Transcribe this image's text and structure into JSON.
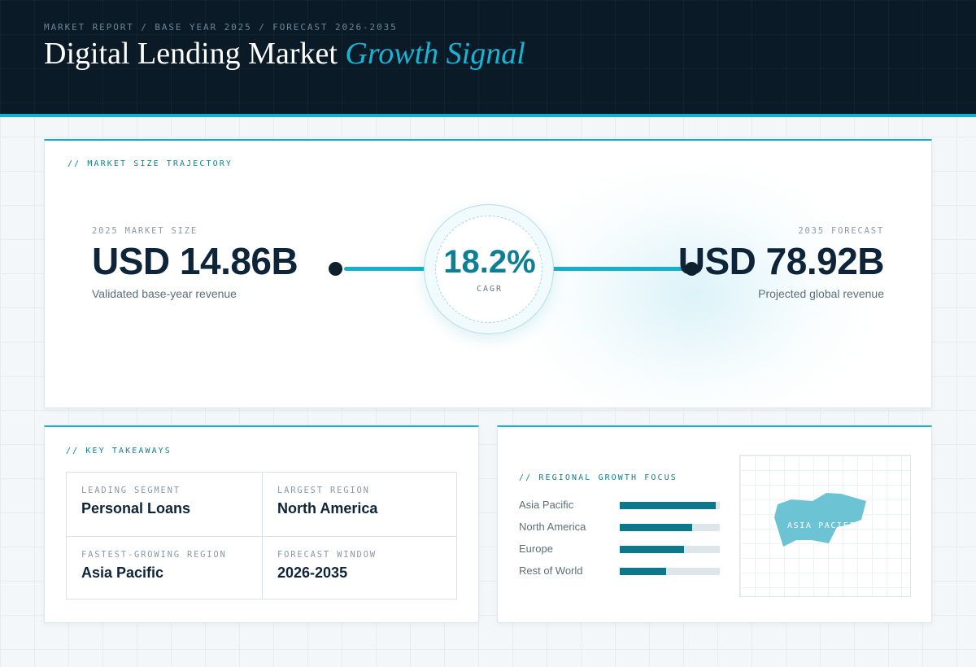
{
  "header": {
    "eyebrow": "MARKET REPORT / BASE YEAR 2025 / FORECAST 2026-2035",
    "title_main": "Digital Lending Market",
    "title_accent": "Growth Signal"
  },
  "trajectory": {
    "section_label": "// MARKET SIZE TRAJECTORY",
    "base": {
      "label": "2025 MARKET SIZE",
      "value": "USD 14.86B",
      "sub": "Validated base-year revenue"
    },
    "forecast": {
      "label": "2035 FORECAST",
      "value": "USD 78.92B",
      "sub": "Projected global revenue"
    },
    "cagr": {
      "value": "18.2%",
      "label": "CAGR"
    }
  },
  "takeaways": {
    "section_label": "// KEY TAKEAWAYS",
    "items": [
      {
        "label": "LEADING SEGMENT",
        "value": "Personal Loans"
      },
      {
        "label": "LARGEST REGION",
        "value": "North America"
      },
      {
        "label": "FASTEST-GROWING REGION",
        "value": "Asia Pacific"
      },
      {
        "label": "FORECAST WINDOW",
        "value": "2026-2035"
      }
    ]
  },
  "regional": {
    "section_label": "// REGIONAL GROWTH FOCUS",
    "rows": [
      {
        "name": "Asia Pacific",
        "level": 0.96
      },
      {
        "name": "North America",
        "level": 0.72
      },
      {
        "name": "Europe",
        "level": 0.64
      },
      {
        "name": "Rest of World",
        "level": 0.46
      }
    ],
    "map_label": "ASIA PACIFIC"
  },
  "colors": {
    "accent": "#13b0cf",
    "bar": "#0d7889",
    "map_region": "#6cc3d3"
  }
}
